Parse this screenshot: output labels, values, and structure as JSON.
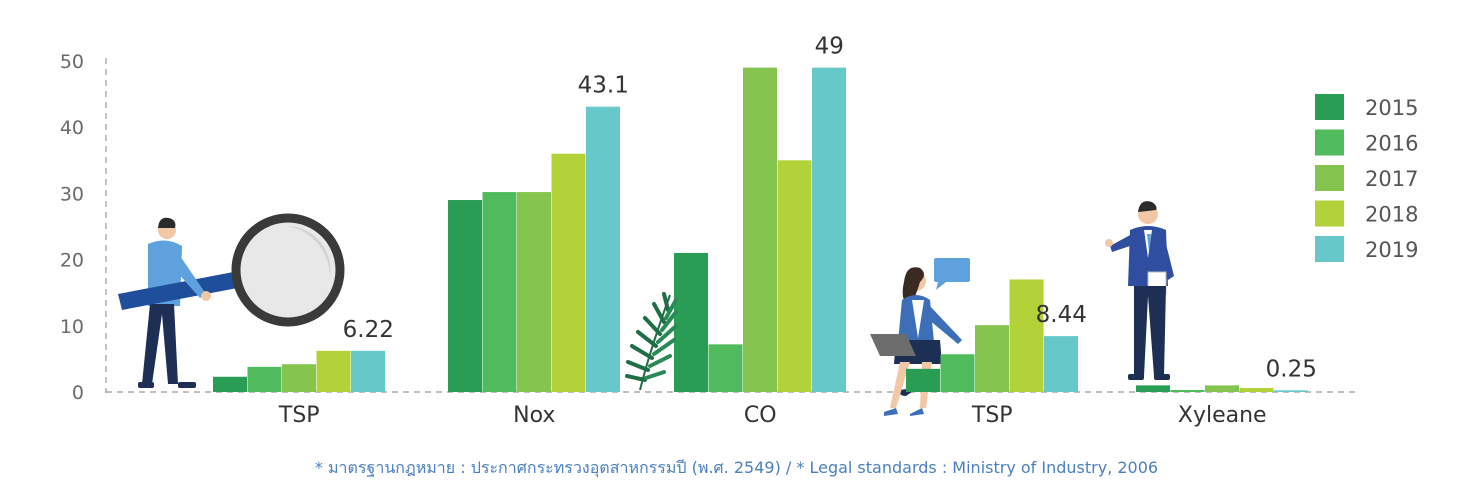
{
  "chart_data": {
    "type": "bar",
    "categories": [
      "TSP",
      "Nox",
      "CO",
      "TSP",
      "Xyleane"
    ],
    "series": [
      {
        "name": "2015",
        "color": "#2a9d55",
        "values": [
          2.3,
          29,
          21,
          3.5,
          1.0
        ]
      },
      {
        "name": "2016",
        "color": "#4fbb5c",
        "values": [
          3.8,
          30.2,
          7.2,
          5.7,
          0.3
        ]
      },
      {
        "name": "2017",
        "color": "#85c44e",
        "values": [
          4.2,
          30.2,
          49,
          10.1,
          1.0
        ]
      },
      {
        "name": "2018",
        "color": "#b3d23a",
        "values": [
          6.22,
          36,
          35,
          17,
          0.6
        ]
      },
      {
        "name": "2019",
        "color": "#66c8c8",
        "values": [
          6.22,
          43.1,
          49,
          8.44,
          0.25
        ]
      }
    ],
    "data_labels": [
      "6.22",
      "43.1",
      "49",
      "8.44",
      "0.25"
    ],
    "ylim": [
      0,
      50
    ],
    "yticks": [
      "0",
      "10",
      "20",
      "30",
      "40",
      "50"
    ],
    "legend_position": "right",
    "grid": false
  },
  "footnote": "* มาตรฐานกฎหมาย : ประกาศกระทรวงอุตสาหกรรมปี (พ.ศ. 2549) / * Legal standards : Ministry of Industry, 2006",
  "illustrations": [
    "man-with-magnifier",
    "fern-leaf",
    "woman-with-laptop",
    "speech-bubble",
    "businessman-pointing"
  ]
}
